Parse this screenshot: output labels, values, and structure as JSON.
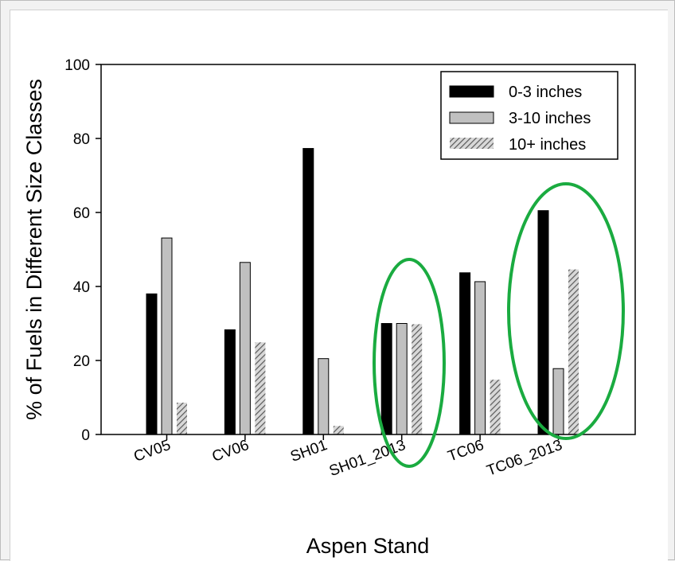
{
  "chart_data": {
    "type": "bar",
    "title": "",
    "xlabel": "Aspen Stand",
    "ylabel": "% of Fuels in Different Size Classes",
    "ylim": [
      0,
      100
    ],
    "yticks": [
      "0",
      "20",
      "40",
      "60",
      "80",
      "100"
    ],
    "categories": [
      "CV05",
      "CV06",
      "SH01",
      "SH01_2013",
      "TC06",
      "TC06_2013"
    ],
    "series": [
      {
        "name": "0-3 inches",
        "values": [
          38,
          28.3,
          77.3,
          30,
          43.7,
          60.5
        ],
        "color": "#000000",
        "pattern": "solid"
      },
      {
        "name": "3-10 inches",
        "values": [
          53.1,
          46.5,
          20.5,
          30,
          41.3,
          17.8
        ],
        "color": "#c0c0c0",
        "pattern": "solid"
      },
      {
        "name": "10+ inches",
        "values": [
          8.6,
          24.9,
          2.3,
          29.8,
          14.8,
          44.6
        ],
        "color": "#a0a0a0",
        "pattern": "hatched"
      }
    ],
    "legend_position": "top-right",
    "highlight_circles": [
      "SH01_2013",
      "TC06_2013"
    ],
    "highlight_color": "#1aab40"
  }
}
